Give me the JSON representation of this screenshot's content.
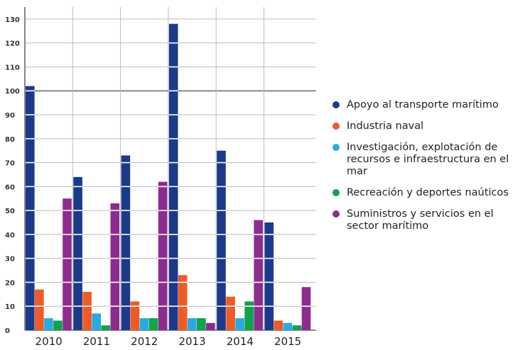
{
  "chart_data": {
    "type": "bar",
    "categories": [
      "2010",
      "2011",
      "2012",
      "2013",
      "2014",
      "2015"
    ],
    "series": [
      {
        "name": "Apoyo al transporte marítimo",
        "color": "#1b3a8c",
        "values": [
          102,
          64,
          73,
          128,
          75,
          45
        ]
      },
      {
        "name": "Industria naval",
        "color": "#f05a28",
        "values": [
          17,
          16,
          12,
          23,
          14,
          4
        ]
      },
      {
        "name": "Investigación, explotación de recursos e infraestructura en el mar",
        "color": "#29aae2",
        "values": [
          5,
          7,
          5,
          5,
          5,
          3
        ]
      },
      {
        "name": "Recreación y deportes naúticos",
        "color": "#10a24c",
        "values": [
          4,
          2,
          5,
          5,
          12,
          2
        ]
      },
      {
        "name": "Suministros y servicios en el sector marítimo",
        "color": "#8d2b8f",
        "values": [
          55,
          53,
          62,
          3,
          46,
          18
        ]
      }
    ],
    "ylim": [
      0,
      135
    ],
    "yticks": [
      0,
      10,
      20,
      30,
      40,
      50,
      60,
      70,
      80,
      90,
      100,
      110,
      120,
      130
    ],
    "grid": true,
    "legend_position": "right"
  }
}
